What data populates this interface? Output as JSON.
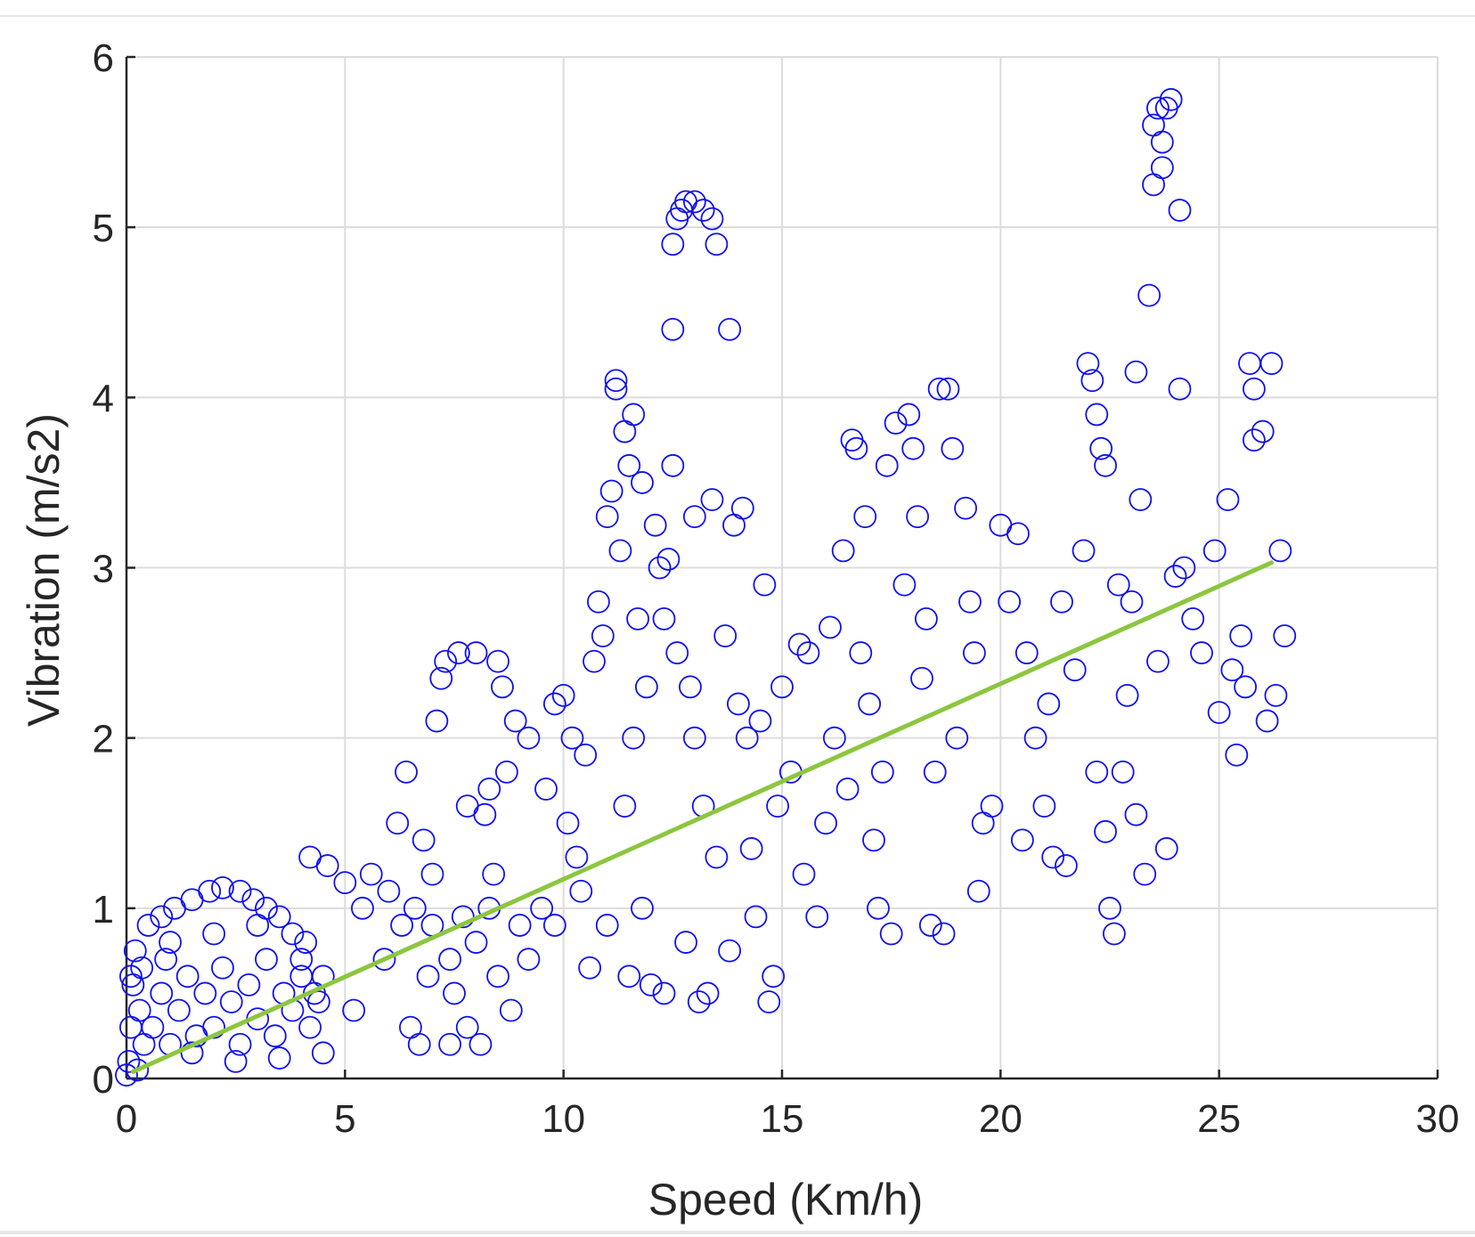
{
  "chart_data": {
    "type": "scatter",
    "xlabel": "Speed (Km/h)",
    "ylabel": "Vibration (m/s2)",
    "xlim": [
      0,
      30
    ],
    "ylim": [
      0,
      6
    ],
    "xticks": [
      "0",
      "5",
      "10",
      "15",
      "20",
      "25",
      "30"
    ],
    "yticks": [
      "0",
      "1",
      "2",
      "3",
      "4",
      "5",
      "6"
    ],
    "grid": true,
    "marker": "open-circle",
    "colors": {
      "points": "#1010ee",
      "fit": "#8cc63f",
      "grid": "#dcdcdc",
      "axis": "#262626"
    },
    "series": [
      {
        "points": [
          [
            0,
            0.02
          ],
          [
            0.05,
            0.1
          ],
          [
            0.1,
            0.3
          ],
          [
            0.15,
            0.55
          ],
          [
            0.2,
            0.75
          ],
          [
            0.1,
            0.6
          ],
          [
            0.3,
            0.4
          ],
          [
            0.4,
            0.2
          ],
          [
            0.25,
            0.05
          ],
          [
            0.35,
            0.65
          ],
          [
            0.6,
            0.3
          ],
          [
            0.8,
            0.5
          ],
          [
            1.0,
            0.2
          ],
          [
            0.9,
            0.7
          ],
          [
            1.2,
            0.4
          ],
          [
            1.4,
            0.6
          ],
          [
            1.6,
            0.25
          ],
          [
            1.8,
            0.5
          ],
          [
            2.0,
            0.3
          ],
          [
            2.2,
            0.65
          ],
          [
            2.4,
            0.45
          ],
          [
            2.6,
            0.2
          ],
          [
            2.8,
            0.55
          ],
          [
            3.0,
            0.35
          ],
          [
            3.2,
            0.7
          ],
          [
            3.4,
            0.25
          ],
          [
            3.6,
            0.5
          ],
          [
            3.8,
            0.4
          ],
          [
            4.0,
            0.6
          ],
          [
            4.2,
            0.3
          ],
          [
            4.4,
            0.45
          ],
          [
            4.5,
            0.15
          ],
          [
            1.5,
            0.15
          ],
          [
            2.5,
            0.1
          ],
          [
            3.5,
            0.12
          ],
          [
            0.5,
            0.9
          ],
          [
            0.8,
            0.95
          ],
          [
            1.1,
            1.0
          ],
          [
            1.5,
            1.05
          ],
          [
            1.9,
            1.1
          ],
          [
            2.2,
            1.12
          ],
          [
            2.6,
            1.1
          ],
          [
            2.9,
            1.05
          ],
          [
            3.2,
            1.0
          ],
          [
            3.5,
            0.95
          ],
          [
            3.8,
            0.85
          ],
          [
            4.1,
            0.8
          ],
          [
            1.0,
            0.8
          ],
          [
            2.0,
            0.85
          ],
          [
            3.0,
            0.9
          ],
          [
            4.0,
            0.7
          ],
          [
            4.3,
            0.5
          ],
          [
            4.2,
            1.3
          ],
          [
            4.6,
            1.25
          ],
          [
            5.0,
            1.15
          ],
          [
            5.4,
            1.0
          ],
          [
            4.5,
            0.6
          ],
          [
            5.2,
            0.4
          ],
          [
            5.6,
            1.2
          ],
          [
            6.0,
            1.1
          ],
          [
            5.9,
            0.7
          ],
          [
            6.2,
            1.5
          ],
          [
            6.4,
            1.8
          ],
          [
            6.5,
            0.3
          ],
          [
            6.7,
            0.2
          ],
          [
            6.8,
            1.4
          ],
          [
            7.0,
            1.2
          ],
          [
            6.9,
            0.6
          ],
          [
            7.1,
            2.1
          ],
          [
            7.2,
            2.35
          ],
          [
            7.3,
            2.45
          ],
          [
            7.6,
            2.5
          ],
          [
            8.0,
            2.5
          ],
          [
            8.5,
            2.45
          ],
          [
            8.6,
            2.3
          ],
          [
            8.9,
            2.1
          ],
          [
            9.2,
            2.0
          ],
          [
            8.7,
            1.8
          ],
          [
            7.8,
            1.6
          ],
          [
            8.2,
            1.55
          ],
          [
            7.5,
            0.5
          ],
          [
            7.8,
            0.3
          ],
          [
            8.0,
            0.8
          ],
          [
            8.3,
            1.0
          ],
          [
            8.5,
            0.6
          ],
          [
            8.8,
            0.4
          ],
          [
            9.0,
            0.9
          ],
          [
            9.2,
            0.7
          ],
          [
            6.3,
            0.9
          ],
          [
            6.6,
            1.0
          ],
          [
            7.0,
            0.9
          ],
          [
            7.4,
            0.7
          ],
          [
            7.7,
            0.95
          ],
          [
            7.4,
            0.2
          ],
          [
            8.1,
            0.2
          ],
          [
            8.4,
            1.2
          ],
          [
            9.5,
            1.0
          ],
          [
            9.6,
            1.7
          ],
          [
            9.8,
            2.2
          ],
          [
            10.0,
            2.25
          ],
          [
            10.1,
            1.5
          ],
          [
            10.3,
            1.3
          ],
          [
            10.5,
            1.9
          ],
          [
            10.6,
            0.65
          ],
          [
            10.7,
            2.45
          ],
          [
            10.8,
            2.8
          ],
          [
            10.9,
            2.6
          ],
          [
            11.0,
            3.3
          ],
          [
            11.1,
            3.45
          ],
          [
            11.2,
            4.1
          ],
          [
            11.2,
            4.05
          ],
          [
            11.4,
            3.8
          ],
          [
            11.5,
            3.6
          ],
          [
            11.3,
            3.1
          ],
          [
            11.6,
            3.9
          ],
          [
            11.8,
            3.5
          ],
          [
            11.7,
            2.7
          ],
          [
            11.9,
            2.3
          ],
          [
            11.6,
            2.0
          ],
          [
            11.4,
            1.6
          ],
          [
            11.0,
            0.9
          ],
          [
            11.5,
            0.6
          ],
          [
            12.0,
            0.55
          ],
          [
            12.3,
            0.5
          ],
          [
            12.1,
            3.25
          ],
          [
            12.2,
            3.0
          ],
          [
            12.4,
            3.05
          ],
          [
            12.3,
            2.7
          ],
          [
            12.5,
            3.6
          ],
          [
            12.6,
            2.5
          ],
          [
            12.6,
            5.05
          ],
          [
            12.7,
            5.1
          ],
          [
            12.8,
            5.15
          ],
          [
            13.0,
            5.15
          ],
          [
            13.2,
            5.1
          ],
          [
            13.4,
            5.05
          ],
          [
            13.5,
            4.9
          ],
          [
            12.5,
            4.9
          ],
          [
            12.5,
            4.4
          ],
          [
            13.8,
            4.4
          ],
          [
            13.0,
            3.3
          ],
          [
            13.4,
            3.4
          ],
          [
            14.1,
            3.35
          ],
          [
            13.9,
            3.25
          ],
          [
            13.0,
            2.0
          ],
          [
            13.2,
            1.6
          ],
          [
            13.1,
            0.45
          ],
          [
            13.3,
            0.5
          ],
          [
            13.5,
            1.3
          ],
          [
            13.7,
            2.6
          ],
          [
            14.0,
            2.2
          ],
          [
            14.2,
            2.0
          ],
          [
            14.4,
            0.95
          ],
          [
            14.6,
            2.9
          ],
          [
            14.8,
            0.6
          ],
          [
            14.7,
            0.45
          ],
          [
            14.9,
            1.6
          ],
          [
            15.0,
            2.3
          ],
          [
            15.2,
            1.8
          ],
          [
            15.4,
            2.55
          ],
          [
            15.6,
            2.5
          ],
          [
            15.8,
            0.95
          ],
          [
            16.0,
            1.5
          ],
          [
            16.2,
            2.0
          ],
          [
            16.4,
            3.1
          ],
          [
            16.6,
            3.75
          ],
          [
            16.7,
            3.7
          ],
          [
            16.9,
            3.3
          ],
          [
            16.8,
            2.5
          ],
          [
            17.0,
            2.2
          ],
          [
            17.1,
            1.4
          ],
          [
            17.2,
            1.0
          ],
          [
            17.4,
            3.6
          ],
          [
            17.6,
            3.85
          ],
          [
            17.9,
            3.9
          ],
          [
            18.0,
            3.7
          ],
          [
            17.8,
            2.9
          ],
          [
            18.1,
            3.3
          ],
          [
            18.3,
            2.7
          ],
          [
            18.5,
            1.8
          ],
          [
            18.6,
            4.05
          ],
          [
            18.8,
            4.05
          ],
          [
            18.9,
            3.7
          ],
          [
            18.7,
            0.85
          ],
          [
            18.4,
            0.9
          ],
          [
            17.5,
            0.85
          ],
          [
            19.0,
            2.0
          ],
          [
            19.2,
            3.35
          ],
          [
            19.4,
            2.5
          ],
          [
            19.6,
            1.5
          ],
          [
            19.8,
            1.6
          ],
          [
            20.0,
            3.25
          ],
          [
            20.2,
            2.8
          ],
          [
            20.4,
            3.2
          ],
          [
            20.6,
            2.5
          ],
          [
            20.8,
            2.0
          ],
          [
            21.0,
            1.6
          ],
          [
            21.2,
            1.3
          ],
          [
            21.4,
            2.8
          ],
          [
            21.5,
            1.25
          ],
          [
            21.7,
            2.4
          ],
          [
            21.9,
            3.1
          ],
          [
            22.0,
            4.2
          ],
          [
            22.1,
            4.1
          ],
          [
            22.2,
            3.9
          ],
          [
            22.3,
            3.7
          ],
          [
            22.4,
            3.6
          ],
          [
            22.2,
            1.8
          ],
          [
            22.4,
            1.45
          ],
          [
            22.5,
            1.0
          ],
          [
            22.6,
            0.85
          ],
          [
            22.8,
            1.8
          ],
          [
            22.9,
            2.25
          ],
          [
            23.0,
            2.8
          ],
          [
            23.1,
            4.15
          ],
          [
            23.2,
            3.4
          ],
          [
            23.1,
            1.55
          ],
          [
            23.3,
            1.2
          ],
          [
            23.4,
            4.6
          ],
          [
            23.5,
            5.25
          ],
          [
            23.5,
            5.6
          ],
          [
            23.6,
            5.7
          ],
          [
            23.7,
            5.5
          ],
          [
            23.8,
            5.7
          ],
          [
            23.9,
            5.75
          ],
          [
            23.7,
            5.35
          ],
          [
            24.1,
            5.1
          ],
          [
            24.1,
            4.05
          ],
          [
            23.6,
            2.45
          ],
          [
            23.8,
            1.35
          ],
          [
            24.2,
            3.0
          ],
          [
            24.4,
            2.7
          ],
          [
            24.6,
            2.5
          ],
          [
            24.9,
            3.1
          ],
          [
            25.0,
            2.15
          ],
          [
            25.2,
            3.4
          ],
          [
            25.3,
            2.4
          ],
          [
            25.4,
            1.9
          ],
          [
            25.6,
            2.3
          ],
          [
            25.7,
            4.2
          ],
          [
            25.8,
            4.05
          ],
          [
            25.8,
            3.75
          ],
          [
            26.0,
            3.8
          ],
          [
            26.1,
            2.1
          ],
          [
            26.2,
            4.2
          ],
          [
            26.3,
            2.25
          ],
          [
            26.4,
            3.1
          ],
          [
            26.5,
            2.6
          ],
          [
            20.5,
            1.4
          ],
          [
            19.5,
            1.1
          ],
          [
            17.3,
            1.8
          ],
          [
            16.5,
            1.7
          ],
          [
            15.5,
            1.2
          ],
          [
            14.3,
            1.35
          ],
          [
            13.8,
            0.75
          ],
          [
            12.8,
            0.8
          ],
          [
            11.8,
            1.0
          ],
          [
            10.4,
            1.1
          ],
          [
            9.8,
            0.9
          ],
          [
            12.9,
            2.3
          ],
          [
            14.5,
            2.1
          ],
          [
            16.1,
            2.65
          ],
          [
            18.2,
            2.35
          ],
          [
            19.3,
            2.8
          ],
          [
            21.1,
            2.2
          ],
          [
            22.7,
            2.9
          ],
          [
            24.0,
            2.95
          ],
          [
            25.5,
            2.6
          ],
          [
            8.3,
            1.7
          ],
          [
            10.2,
            2.0
          ]
        ]
      }
    ],
    "fit_line": {
      "x": [
        0.15,
        26.2
      ],
      "y": [
        0.04,
        3.03
      ]
    }
  }
}
